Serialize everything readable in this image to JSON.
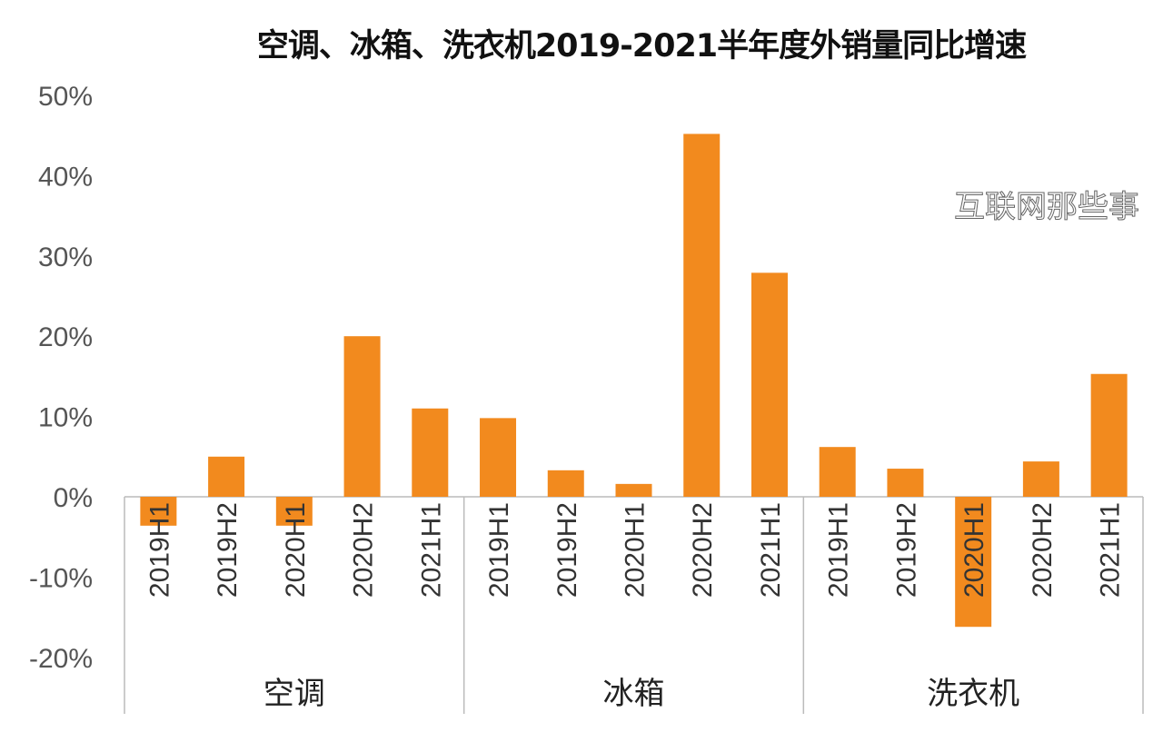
{
  "chart_data": {
    "type": "bar",
    "title": "空调、冰箱、洗衣机2019-2021半年度外销量同比增速",
    "xlabel": "",
    "ylabel": "",
    "ylim": [
      -20,
      50
    ],
    "yticks": [
      "50%",
      "40%",
      "30%",
      "20%",
      "10%",
      "0%",
      "-10%",
      "-20%"
    ],
    "ytick_values": [
      50,
      40,
      30,
      20,
      10,
      0,
      -10,
      -20
    ],
    "grid": false,
    "legend": "none",
    "bar_color": "#F28A1E",
    "groups": [
      {
        "name": "空调",
        "categories": [
          "2019H1",
          "2019H2",
          "2020H1",
          "2020H2",
          "2021H1"
        ],
        "values": [
          -3.6,
          5.0,
          -3.6,
          20.0,
          11.0
        ]
      },
      {
        "name": "冰箱",
        "categories": [
          "2019H1",
          "2019H2",
          "2020H1",
          "2020H2",
          "2021H1"
        ],
        "values": [
          9.8,
          3.3,
          1.6,
          45.2,
          27.9
        ]
      },
      {
        "name": "洗衣机",
        "categories": [
          "2019H1",
          "2019H2",
          "2020H1",
          "2020H2",
          "2021H1"
        ],
        "values": [
          6.2,
          3.5,
          -16.2,
          4.4,
          15.3
        ]
      }
    ]
  },
  "watermark": "互联网那些事"
}
